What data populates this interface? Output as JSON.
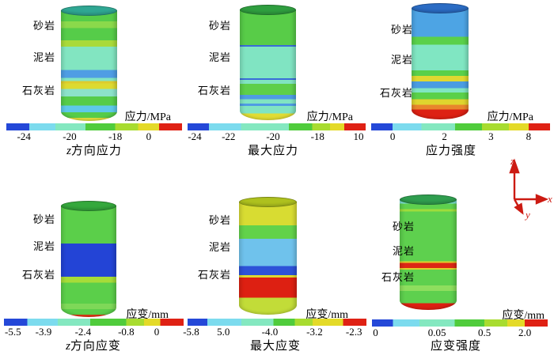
{
  "chart_data": [
    {
      "type": "heatmap",
      "title": "z方向应力",
      "colorbar_label": "应力/MPa",
      "colorbar_ticks": [
        -24,
        -20,
        -18,
        0
      ],
      "layers_top_to_bottom": [
        "砂岩",
        "泥岩",
        "石灰岩"
      ]
    },
    {
      "type": "heatmap",
      "title": "最大应力",
      "colorbar_label": "应力/MPa",
      "colorbar_ticks": [
        -24,
        -22,
        -20,
        -18,
        10
      ],
      "layers_top_to_bottom": [
        "砂岩",
        "泥岩",
        "石灰岩"
      ]
    },
    {
      "type": "heatmap",
      "title": "应力强度",
      "colorbar_label": "应力/MPa",
      "colorbar_ticks": [
        0,
        2,
        3,
        8
      ],
      "layers_top_to_bottom": [
        "砂岩",
        "泥岩",
        "石灰岩"
      ]
    },
    {
      "type": "heatmap",
      "title": "z方向应变",
      "colorbar_label": "应变/mm",
      "colorbar_ticks": [
        -5.5,
        -3.9,
        -2.4,
        -0.8,
        0
      ],
      "layers_top_to_bottom": [
        "砂岩",
        "泥岩",
        "石灰岩"
      ]
    },
    {
      "type": "heatmap",
      "title": "最大应变",
      "colorbar_label": "应变/mm",
      "colorbar_ticks": [
        -5.8,
        5.0,
        -4.0,
        -3.2,
        -2.3
      ],
      "layers_top_to_bottom": [
        "砂岩",
        "泥岩",
        "石灰岩"
      ]
    },
    {
      "type": "heatmap",
      "title": "应变强度",
      "colorbar_label": "应变/mm",
      "colorbar_ticks": [
        0,
        0.05,
        0.5,
        2.0
      ],
      "layers_top_to_bottom": [
        "砂岩",
        "泥岩",
        "石灰岩"
      ]
    }
  ],
  "axes_triad": {
    "x_label": "x",
    "y_label": "y",
    "z_label": "z",
    "color": "#cc1a12"
  },
  "panels": [
    {
      "name": "panel-z-stress",
      "caption": {
        "prefix": "z",
        "text": "方向应力"
      },
      "rocks": [
        {
          "label": "砂岩"
        },
        {
          "label": "泥岩"
        },
        {
          "label": "石灰岩"
        }
      ],
      "colorbar": {
        "title": "应力/MPa",
        "segments": [
          {
            "color": "#2448d8",
            "to": 13
          },
          {
            "color": "#7cdbee",
            "to": 28
          },
          {
            "color": "#84e8c0",
            "to": 45
          },
          {
            "color": "#50cc3c",
            "to": 62
          },
          {
            "color": "#a8dc30",
            "to": 75
          },
          {
            "color": "#e4da28",
            "to": 87
          },
          {
            "color": "#df2114",
            "to": 100
          }
        ],
        "ticks": [
          {
            "label": "-24",
            "pos": 10
          },
          {
            "label": "-20",
            "pos": 36
          },
          {
            "label": "-18",
            "pos": 62
          },
          {
            "label": "0",
            "pos": 81
          }
        ]
      },
      "cylinder": {
        "cap": "#2fa793",
        "bands": [
          {
            "color": "#56cc49",
            "to": 10
          },
          {
            "color": "#8bd94b",
            "to": 16
          },
          {
            "color": "#56cc49",
            "to": 27
          },
          {
            "color": "#a9da3a",
            "to": 33
          },
          {
            "color": "#82e5c1",
            "to": 54
          },
          {
            "color": "#4f9de4",
            "to": 61
          },
          {
            "color": "#82e5c1",
            "to": 64
          },
          {
            "color": "#decc2e",
            "to": 66
          },
          {
            "color": "#ddda30",
            "to": 71
          },
          {
            "color": "#8ce2c9",
            "to": 78
          },
          {
            "color": "#56cc49",
            "to": 86
          },
          {
            "color": "#5ec9e9",
            "to": 92
          },
          {
            "color": "#56cc49",
            "to": 97
          },
          {
            "color": "#e3de3c",
            "to": 100
          }
        ]
      }
    },
    {
      "name": "panel-max-stress",
      "caption": {
        "prefix": "",
        "text": "最大应力"
      },
      "rocks": [
        {
          "label": "砂岩"
        },
        {
          "label": "泥岩"
        },
        {
          "label": "石灰岩"
        }
      ],
      "colorbar": {
        "title": "应力/MPa",
        "segments": [
          {
            "color": "#2448d8",
            "to": 12
          },
          {
            "color": "#7cdbee",
            "to": 30
          },
          {
            "color": "#84e8c0",
            "to": 57
          },
          {
            "color": "#50cc3c",
            "to": 70
          },
          {
            "color": "#a8dc30",
            "to": 80
          },
          {
            "color": "#e4da28",
            "to": 88
          },
          {
            "color": "#df2114",
            "to": 100
          }
        ],
        "ticks": [
          {
            "label": "-24",
            "pos": 4
          },
          {
            "label": "-22",
            "pos": 23
          },
          {
            "label": "-20",
            "pos": 48
          },
          {
            "label": "-18",
            "pos": 73
          },
          {
            "label": "10",
            "pos": 96
          }
        ]
      },
      "cylinder": {
        "cap": "#2f9e3f",
        "bands": [
          {
            "color": "#58cc48",
            "to": 32
          },
          {
            "color": "#3a6cd8",
            "to": 33.5
          },
          {
            "color": "#80e4c2",
            "to": 62
          },
          {
            "color": "#3a6cd8",
            "to": 63.5
          },
          {
            "color": "#80e4c2",
            "to": 67
          },
          {
            "color": "#5ecf4a",
            "to": 77
          },
          {
            "color": "#4f9ce4",
            "to": 81
          },
          {
            "color": "#80e4c2",
            "to": 85
          },
          {
            "color": "#4f9ce4",
            "to": 87
          },
          {
            "color": "#80e4c2",
            "to": 94
          },
          {
            "color": "#e0dc34",
            "to": 100
          }
        ]
      }
    },
    {
      "name": "panel-stress-intensity",
      "caption": {
        "prefix": "",
        "text": "应力强度"
      },
      "rocks": [
        {
          "label": "砂岩"
        },
        {
          "label": "泥岩"
        },
        {
          "label": "石灰岩"
        }
      ],
      "colorbar": {
        "title": "应力/MPa",
        "segments": [
          {
            "color": "#2448d8",
            "to": 12
          },
          {
            "color": "#7cdbee",
            "to": 28
          },
          {
            "color": "#84e8c0",
            "to": 47
          },
          {
            "color": "#50cc3c",
            "to": 62
          },
          {
            "color": "#a8dc30",
            "to": 77
          },
          {
            "color": "#e4da28",
            "to": 88
          },
          {
            "color": "#df2114",
            "to": 100
          }
        ],
        "ticks": [
          {
            "label": "0",
            "pos": 12
          },
          {
            "label": "2",
            "pos": 41
          },
          {
            "label": "3",
            "pos": 67
          },
          {
            "label": "8",
            "pos": 88
          }
        ]
      },
      "cylinder": {
        "cap": "#2b6cc4",
        "bands": [
          {
            "color": "#4da4e4",
            "to": 26
          },
          {
            "color": "#5ad04a",
            "to": 33
          },
          {
            "color": "#80e6c2",
            "to": 56
          },
          {
            "color": "#5ad04a",
            "to": 61
          },
          {
            "color": "#e0d830",
            "to": 66
          },
          {
            "color": "#4a9ce2",
            "to": 72
          },
          {
            "color": "#80e6c2",
            "to": 76
          },
          {
            "color": "#5ad04a",
            "to": 82
          },
          {
            "color": "#dfd52e",
            "to": 87
          },
          {
            "color": "#e8862c",
            "to": 91
          },
          {
            "color": "#dd2114",
            "to": 100
          }
        ]
      }
    },
    {
      "name": "panel-z-strain",
      "caption": {
        "prefix": "z",
        "text": "方向应变"
      },
      "rocks": [
        {
          "label": "砂岩"
        },
        {
          "label": "泥岩"
        },
        {
          "label": "石灰岩"
        }
      ],
      "colorbar": {
        "title": "应变/mm",
        "segments": [
          {
            "color": "#2448d8",
            "to": 13
          },
          {
            "color": "#7cdbee",
            "to": 30
          },
          {
            "color": "#84e8c0",
            "to": 48
          },
          {
            "color": "#50cc3c",
            "to": 68
          },
          {
            "color": "#a8dc30",
            "to": 78
          },
          {
            "color": "#e4da28",
            "to": 87
          },
          {
            "color": "#df2114",
            "to": 100
          }
        ],
        "ticks": [
          {
            "label": "-5.5",
            "pos": 5
          },
          {
            "label": "-3.9",
            "pos": 22
          },
          {
            "label": "-2.4",
            "pos": 44
          },
          {
            "label": "-0.8",
            "pos": 68
          },
          {
            "label": "0",
            "pos": 85
          }
        ]
      },
      "cylinder": {
        "cap": "#35a83c",
        "bands": [
          {
            "color": "#5bcf4a",
            "to": 34
          },
          {
            "color": "#2344d6",
            "to": 64
          },
          {
            "color": "#a6dc38",
            "to": 69
          },
          {
            "color": "#5bcf4a",
            "to": 88
          },
          {
            "color": "#7ed858",
            "to": 93
          },
          {
            "color": "#5bcf4a",
            "to": 98
          },
          {
            "color": "#df3a16",
            "to": 100
          }
        ]
      }
    },
    {
      "name": "panel-max-strain",
      "caption": {
        "prefix": "",
        "text": "最大应变"
      },
      "rocks": [
        {
          "label": "砂岩"
        },
        {
          "label": "泥岩"
        },
        {
          "label": "石灰岩"
        }
      ],
      "colorbar": {
        "title": "应变/mm",
        "segments": [
          {
            "color": "#2448d8",
            "to": 11
          },
          {
            "color": "#7cdbee",
            "to": 30
          },
          {
            "color": "#84e8c0",
            "to": 48
          },
          {
            "color": "#50cc3c",
            "to": 60
          },
          {
            "color": "#a8dc30",
            "to": 70
          },
          {
            "color": "#e4da28",
            "to": 87
          },
          {
            "color": "#df2114",
            "to": 100
          }
        ],
        "ticks": [
          {
            "label": "-5.8",
            "pos": 2
          },
          {
            "label": "5.0",
            "pos": 20
          },
          {
            "label": "-4.0",
            "pos": 46
          },
          {
            "label": "-3.2",
            "pos": 71
          },
          {
            "label": "-2.3",
            "pos": 93
          }
        ]
      },
      "cylinder": {
        "cap": "#aec11e",
        "bands": [
          {
            "color": "#d8dc32",
            "to": 21
          },
          {
            "color": "#62d24a",
            "to": 33
          },
          {
            "color": "#6fc2ec",
            "to": 57
          },
          {
            "color": "#2d52d8",
            "to": 65
          },
          {
            "color": "#ded832",
            "to": 67
          },
          {
            "color": "#dd2012",
            "to": 85
          },
          {
            "color": "#c2dc38",
            "to": 100
          }
        ]
      }
    },
    {
      "name": "panel-strain-intensity",
      "caption": {
        "prefix": "",
        "text": "应变强度"
      },
      "rocks": [
        {
          "label": "砂岩"
        },
        {
          "label": "泥岩"
        },
        {
          "label": "石灰岩"
        }
      ],
      "colorbar": {
        "title": "应变/mm",
        "segments": [
          {
            "color": "#2448d8",
            "to": 12
          },
          {
            "color": "#7cdbee",
            "to": 27
          },
          {
            "color": "#84e8c0",
            "to": 47
          },
          {
            "color": "#50cc3c",
            "to": 64
          },
          {
            "color": "#a8dc30",
            "to": 77
          },
          {
            "color": "#e4da28",
            "to": 87
          },
          {
            "color": "#df2114",
            "to": 100
          }
        ],
        "ticks": [
          {
            "label": "0",
            "pos": 2
          },
          {
            "label": "0.05",
            "pos": 37
          },
          {
            "label": "0.5",
            "pos": 64
          },
          {
            "label": "2.0",
            "pos": 87
          }
        ]
      },
      "cylinder": {
        "cap": "#2f9e4f",
        "bands": [
          {
            "color": "#7fe0d8",
            "to": 4
          },
          {
            "color": "#5ed04e",
            "to": 9
          },
          {
            "color": "#9edc3c",
            "to": 11
          },
          {
            "color": "#5ed04e",
            "to": 56
          },
          {
            "color": "#e0d02c",
            "to": 57.5
          },
          {
            "color": "#dd2815",
            "to": 62
          },
          {
            "color": "#e0d02c",
            "to": 63.5
          },
          {
            "color": "#5ed04e",
            "to": 78
          },
          {
            "color": "#8ede5e",
            "to": 83
          },
          {
            "color": "#5ed04e",
            "to": 94
          },
          {
            "color": "#dd2013",
            "to": 100
          }
        ]
      }
    }
  ]
}
